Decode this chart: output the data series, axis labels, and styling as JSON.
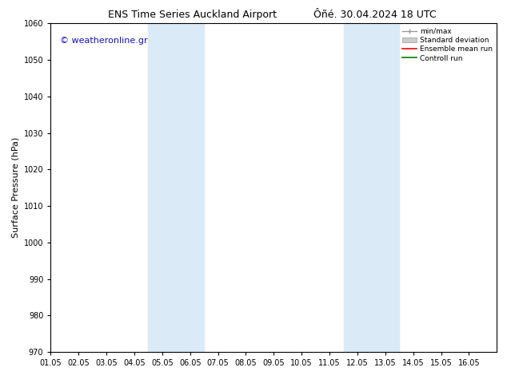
{
  "title_left": "ENS Time Series Auckland Airport",
  "title_right": "Ôñé. 30.04.2024 18 UTC",
  "ylabel": "Surface Pressure (hPa)",
  "ylim": [
    970,
    1060
  ],
  "yticks": [
    970,
    980,
    990,
    1000,
    1010,
    1020,
    1030,
    1040,
    1050,
    1060
  ],
  "xlim": [
    0,
    16
  ],
  "xtick_labels": [
    "01.05",
    "02.05",
    "03.05",
    "04.05",
    "05.05",
    "06.05",
    "07.05",
    "08.05",
    "09.05",
    "10.05",
    "11.05",
    "12.05",
    "13.05",
    "14.05",
    "15.05",
    "16.05"
  ],
  "shaded_bands": [
    {
      "x_start": 3.5,
      "x_end": 5.5,
      "color": "#daeaf7"
    },
    {
      "x_start": 10.5,
      "x_end": 12.5,
      "color": "#daeaf7"
    }
  ],
  "watermark_text": "© weatheronline.gr",
  "watermark_color": "#1111cc",
  "watermark_fontsize": 8,
  "legend_entries": [
    {
      "label": "min/max"
    },
    {
      "label": "Standard deviation"
    },
    {
      "label": "Ensemble mean run"
    },
    {
      "label": "Controll run"
    }
  ],
  "bg_color": "#ffffff",
  "plot_bg_color": "#ffffff",
  "tick_label_fontsize": 7,
  "axis_label_fontsize": 8,
  "title_fontsize": 9
}
